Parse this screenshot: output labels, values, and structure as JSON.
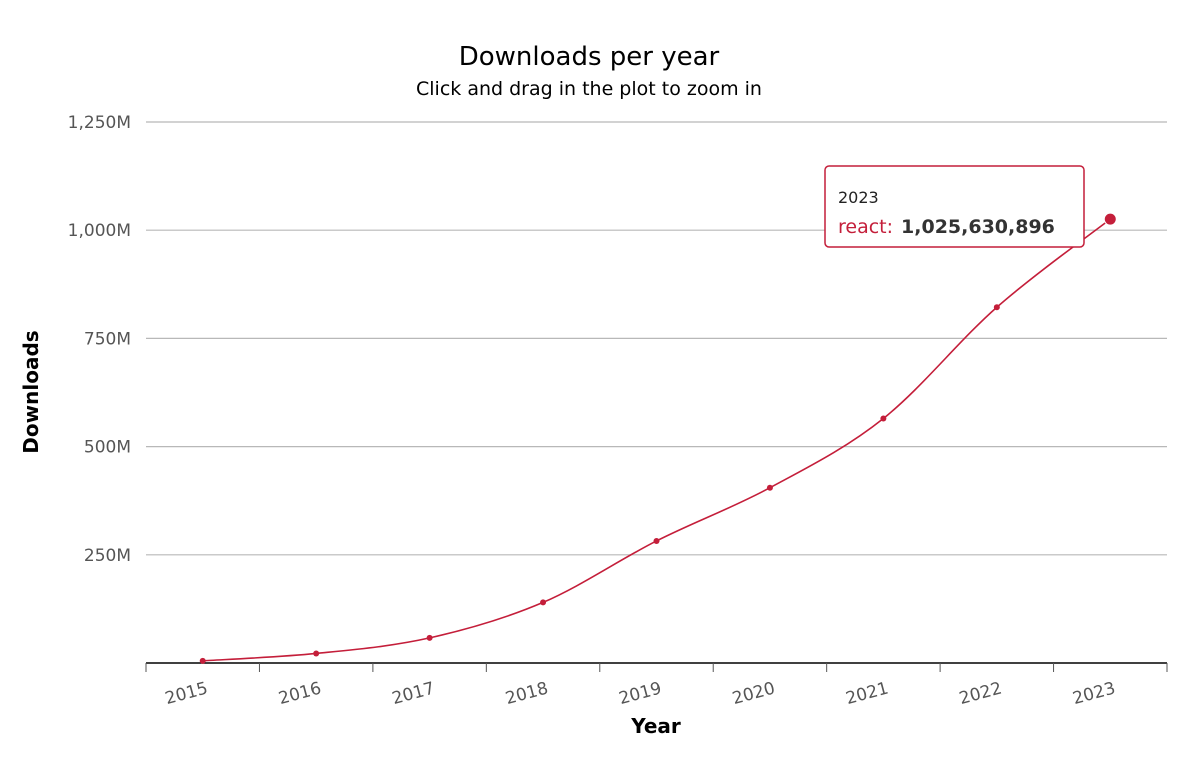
{
  "chart_data": {
    "type": "line",
    "title": "Downloads per year",
    "subtitle": "Click and drag in the plot to zoom in",
    "xlabel": "Year",
    "ylabel": "Downloads",
    "categories": [
      "2015",
      "2016",
      "2017",
      "2018",
      "2019",
      "2020",
      "2021",
      "2022",
      "2023"
    ],
    "series": [
      {
        "name": "react",
        "color": "#c41e3a",
        "values": [
          5000000,
          22000000,
          58000000,
          140000000,
          282000000,
          405000000,
          565000000,
          822000000,
          1025630896
        ]
      }
    ],
    "ylim": [
      0,
      1250000000
    ],
    "yticks": [
      {
        "value": 250000000,
        "label": "250M"
      },
      {
        "value": 500000000,
        "label": "500M"
      },
      {
        "value": 750000000,
        "label": "750M"
      },
      {
        "value": 1000000000,
        "label": "1,000M"
      },
      {
        "value": 1250000000,
        "label": "1,250M"
      }
    ],
    "grid": true,
    "legend": "none",
    "tooltip": {
      "category": "2023",
      "series": "react",
      "sep": ":",
      "value": "1,025,630,896"
    }
  }
}
